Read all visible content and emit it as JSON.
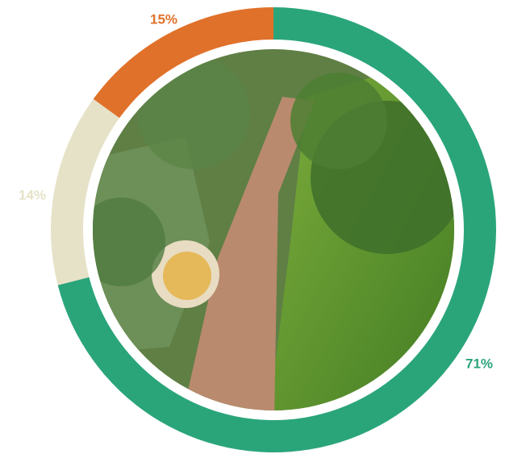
{
  "chart_data": {
    "type": "donut",
    "categories": [
      null,
      null,
      null
    ],
    "values": [
      71,
      14,
      15
    ],
    "value_labels": [
      "71%",
      "14%",
      "15%"
    ],
    "colors": [
      "#2aa57a",
      "#e6e2c8",
      "#e0712a"
    ]
  }
}
